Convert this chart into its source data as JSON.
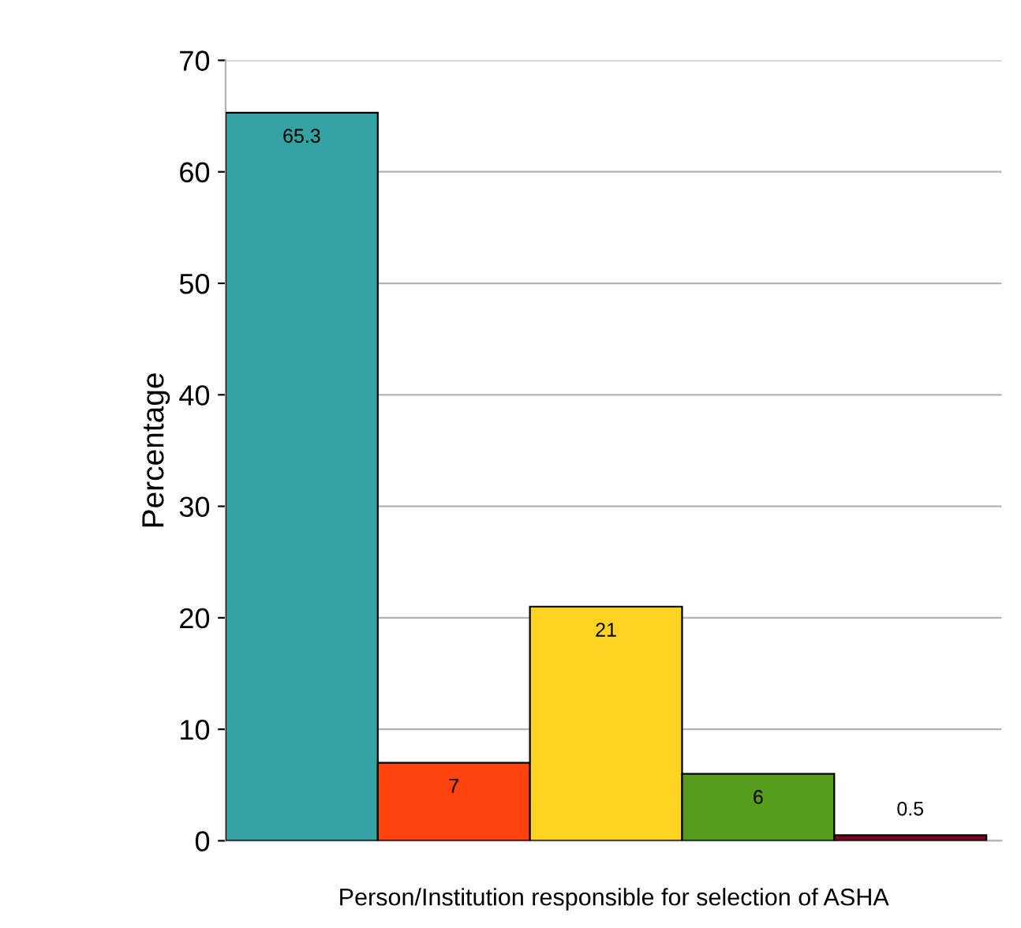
{
  "chart_data": {
    "type": "bar",
    "xlabel": "Person/Institution responsible for selection of ASHA",
    "ylabel": "Percentage",
    "categories": [
      null,
      null,
      null,
      null,
      null
    ],
    "values": [
      65.3,
      7,
      21,
      6,
      0.5
    ],
    "colors": [
      "#33a3a3",
      "#ff420e",
      "#ffd320",
      "#579d1c",
      "#7e0021"
    ],
    "ylim": [
      0,
      70
    ],
    "yticks": [
      0,
      10,
      20,
      30,
      40,
      50,
      60,
      70
    ],
    "grid": "y",
    "data_labels": true
  }
}
